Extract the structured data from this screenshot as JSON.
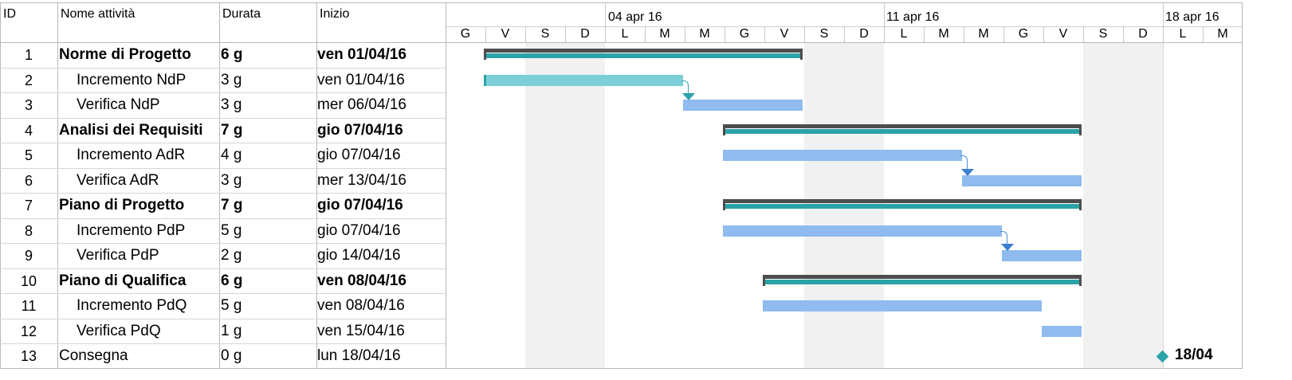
{
  "columns": {
    "id": "ID",
    "name": "Nome attività",
    "duration": "Durata",
    "start": "Inizio"
  },
  "timescale": {
    "weeks": [
      "04 apr 16",
      "11 apr 16",
      "18 apr 16"
    ],
    "days": [
      "G",
      "V",
      "S",
      "D",
      "L",
      "M",
      "M",
      "G",
      "V",
      "S",
      "D",
      "L",
      "M",
      "M",
      "G",
      "V",
      "S",
      "D",
      "L",
      "M"
    ]
  },
  "tasks": [
    {
      "id": "1",
      "name": "Norme di Progetto",
      "duration": "6 g",
      "start": "ven 01/04/16",
      "summary": true
    },
    {
      "id": "2",
      "name": "Incremento NdP",
      "duration": "3 g",
      "start": "ven 01/04/16",
      "summary": false
    },
    {
      "id": "3",
      "name": "Verifica NdP",
      "duration": "3 g",
      "start": "mer 06/04/16",
      "summary": false
    },
    {
      "id": "4",
      "name": "Analisi dei Requisiti",
      "duration": "7 g",
      "start": "gio 07/04/16",
      "summary": true
    },
    {
      "id": "5",
      "name": "Incremento AdR",
      "duration": "4 g",
      "start": "gio 07/04/16",
      "summary": false
    },
    {
      "id": "6",
      "name": "Verifica AdR",
      "duration": "3 g",
      "start": "mer 13/04/16",
      "summary": false
    },
    {
      "id": "7",
      "name": "Piano di Progetto",
      "duration": "7 g",
      "start": "gio 07/04/16",
      "summary": true
    },
    {
      "id": "8",
      "name": "Incremento PdP",
      "duration": "5 g",
      "start": "gio 07/04/16",
      "summary": false
    },
    {
      "id": "9",
      "name": "Verifica PdP",
      "duration": "2 g",
      "start": "gio 14/04/16",
      "summary": false
    },
    {
      "id": "10",
      "name": "Piano di Qualifica",
      "duration": "6 g",
      "start": "ven 08/04/16",
      "summary": true
    },
    {
      "id": "11",
      "name": "Incremento PdQ",
      "duration": "5 g",
      "start": "ven 08/04/16",
      "summary": false
    },
    {
      "id": "12",
      "name": "Verifica PdQ",
      "duration": "1 g",
      "start": "ven 15/04/16",
      "summary": false
    },
    {
      "id": "13",
      "name": "Consegna",
      "duration": "0 g",
      "start": "lun 18/04/16",
      "summary": false
    }
  ],
  "milestone_label": "18/04",
  "colors": {
    "summary_bar": "#2aa3a8",
    "summary_outline": "#4d4d4d",
    "task_light": "#7ad0d6",
    "task_blue": "#8fbbee",
    "weekend_shade": "#f1f1f1"
  }
}
